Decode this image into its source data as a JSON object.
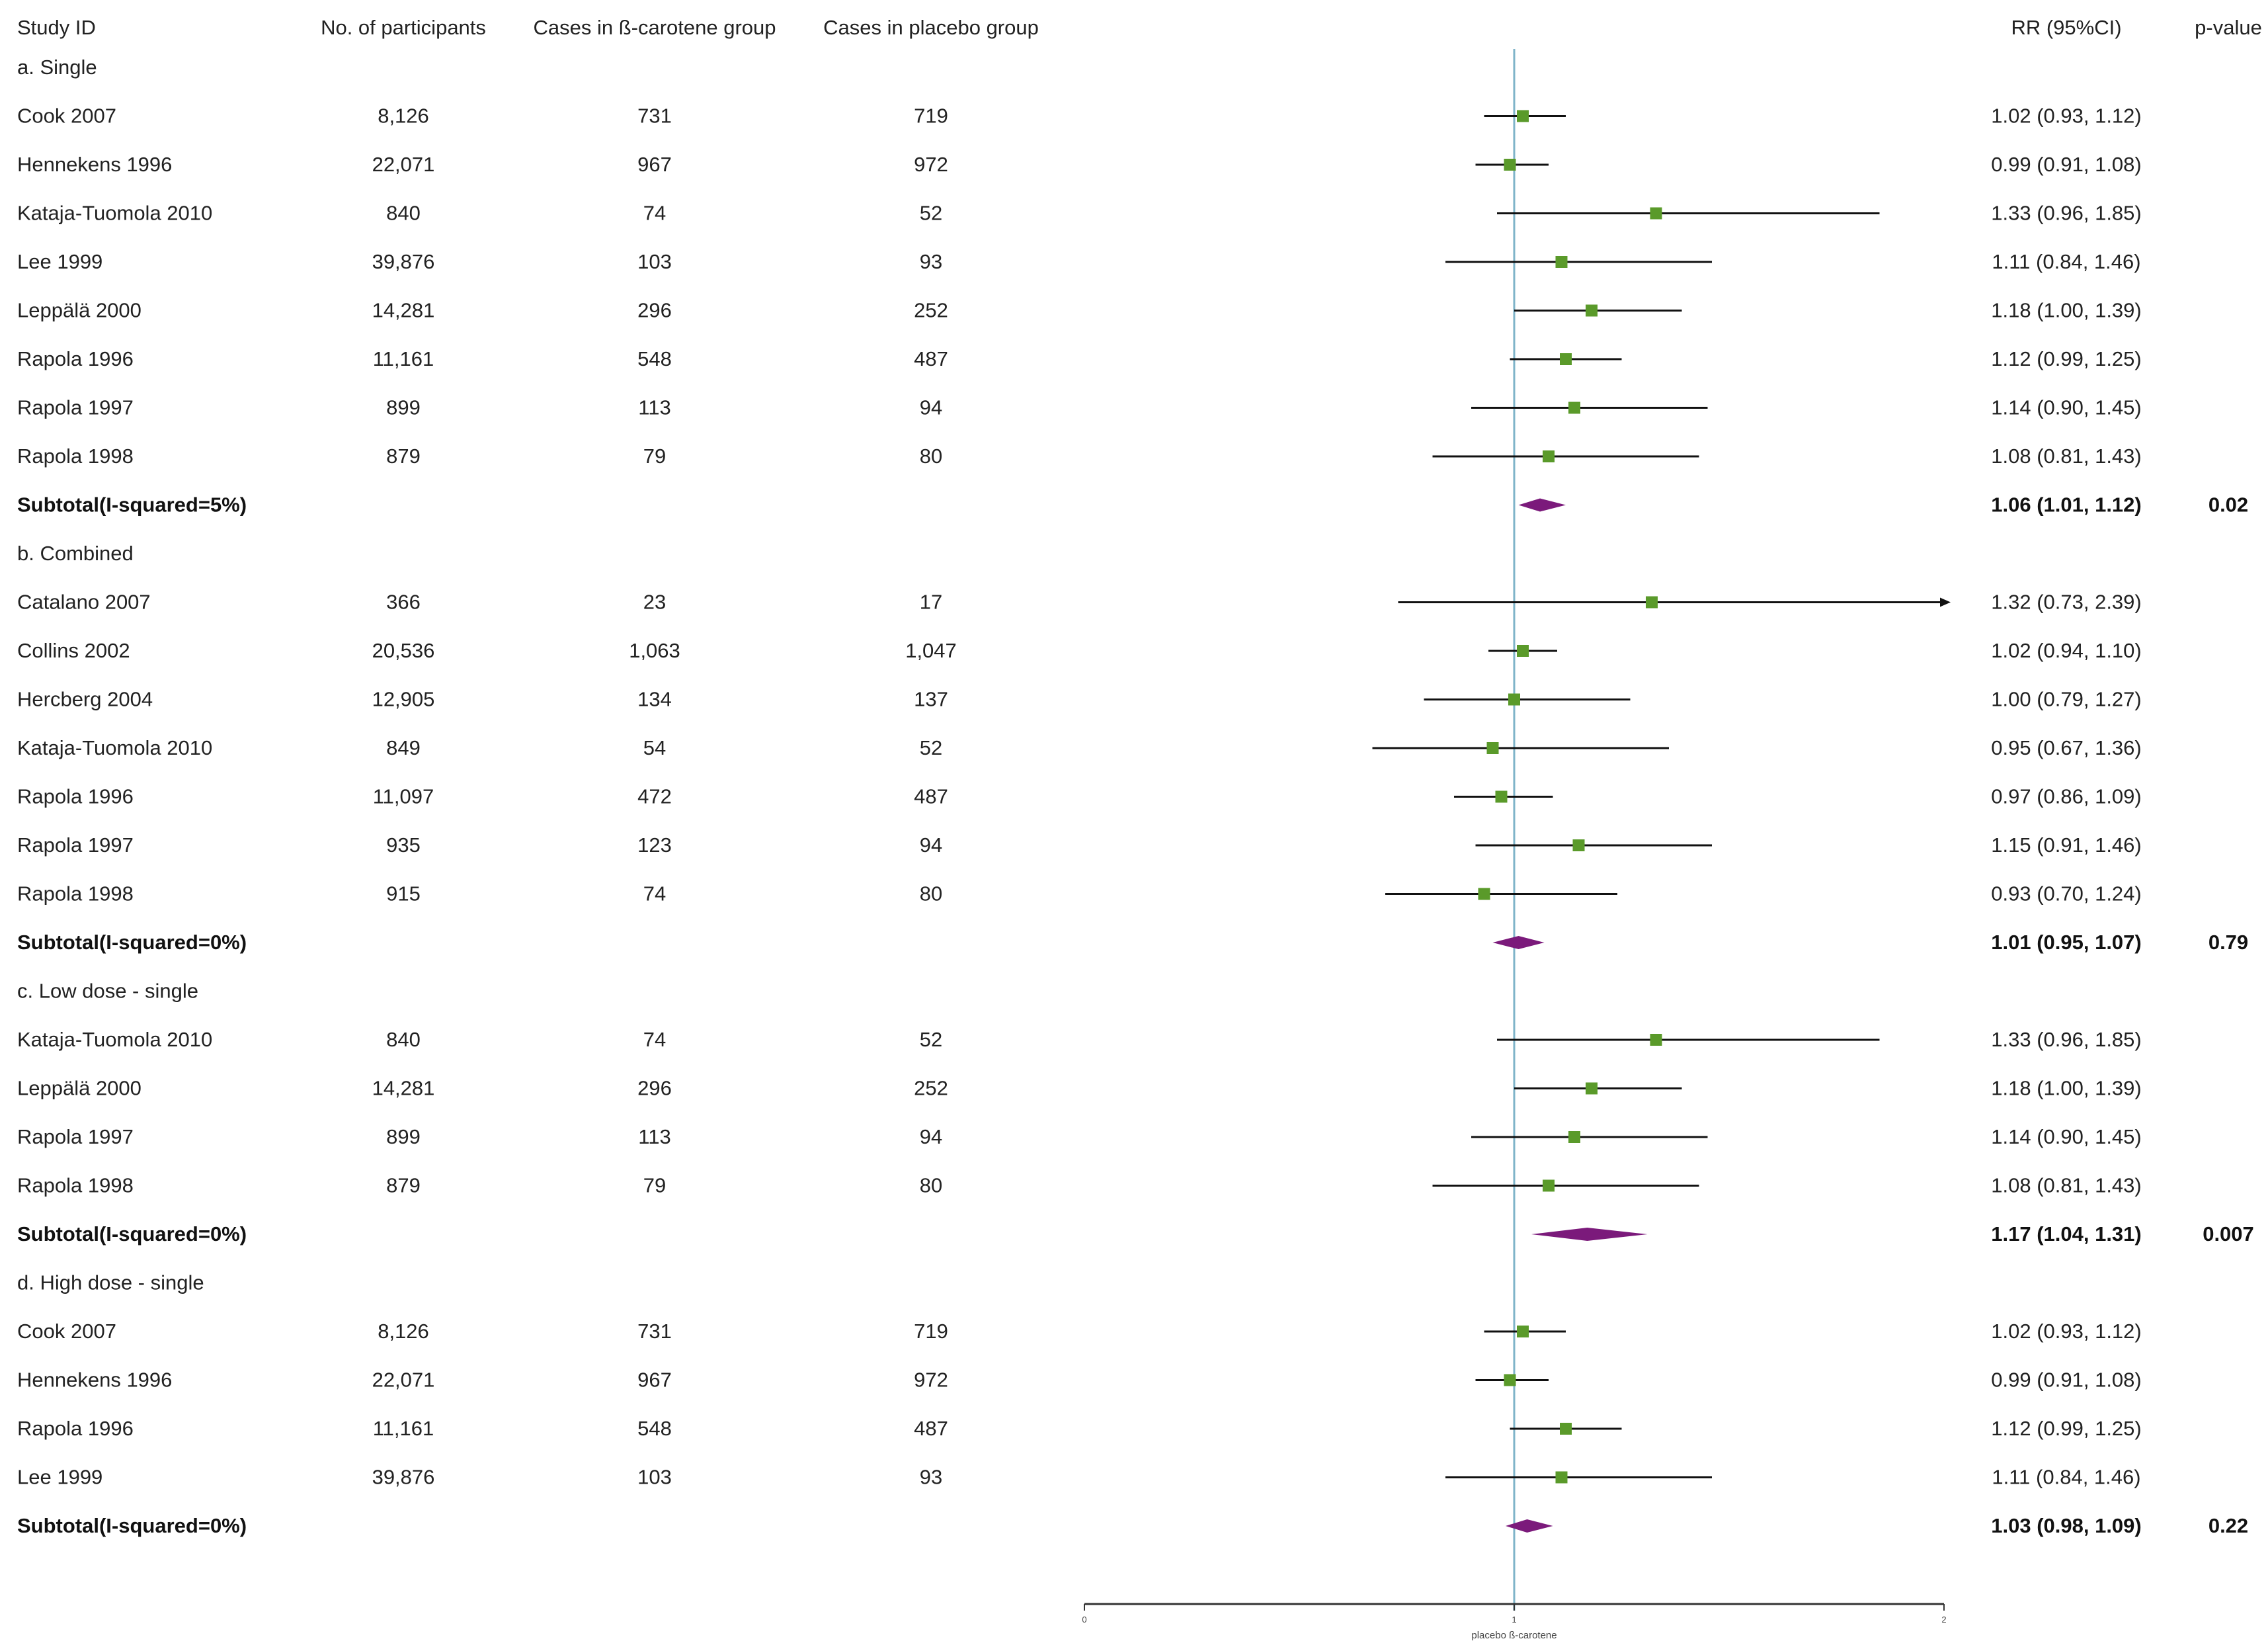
{
  "chart_data": {
    "type": "forest",
    "measure": "RR",
    "headers": {
      "study": "Study ID",
      "participants": "No. of participants",
      "cases_treatment": "Cases in ß-carotene group",
      "cases_placebo": "Cases in placebo group",
      "rr": "RR (95%CI)",
      "p": "p-value"
    },
    "x_axis": {
      "range": [
        0,
        2
      ],
      "reference_line": 1,
      "ticks": [
        "0",
        "1",
        "2"
      ],
      "tick_values": [
        0,
        1,
        2
      ],
      "label": "placebo ß-carotene"
    },
    "rows": [
      {
        "kind": "group",
        "label": "a. Single"
      },
      {
        "kind": "study",
        "label": "Cook 2007",
        "n": "8,126",
        "cases_tx": "731",
        "cases_pl": "719",
        "rr_text": "1.02 (0.93, 1.12)",
        "rr": 1.02,
        "lo": 0.93,
        "hi": 1.12
      },
      {
        "kind": "study",
        "label": "Hennekens 1996",
        "n": "22,071",
        "cases_tx": "967",
        "cases_pl": "972",
        "rr_text": "0.99 (0.91, 1.08)",
        "rr": 0.99,
        "lo": 0.91,
        "hi": 1.08
      },
      {
        "kind": "study",
        "label": "Kataja-Tuomola 2010",
        "n": "840",
        "cases_tx": "74",
        "cases_pl": "52",
        "rr_text": "1.33 (0.96, 1.85)",
        "rr": 1.33,
        "lo": 0.96,
        "hi": 1.85
      },
      {
        "kind": "study",
        "label": "Lee 1999",
        "n": "39,876",
        "cases_tx": "103",
        "cases_pl": "93",
        "rr_text": "1.11 (0.84, 1.46)",
        "rr": 1.11,
        "lo": 0.84,
        "hi": 1.46
      },
      {
        "kind": "study",
        "label": "Leppälä 2000",
        "n": "14,281",
        "cases_tx": "296",
        "cases_pl": "252",
        "rr_text": "1.18 (1.00, 1.39)",
        "rr": 1.18,
        "lo": 1.0,
        "hi": 1.39
      },
      {
        "kind": "study",
        "label": "Rapola 1996",
        "n": "11,161",
        "cases_tx": "548",
        "cases_pl": "487",
        "rr_text": "1.12 (0.99, 1.25)",
        "rr": 1.12,
        "lo": 0.99,
        "hi": 1.25
      },
      {
        "kind": "study",
        "label": "Rapola 1997",
        "n": "899",
        "cases_tx": "113",
        "cases_pl": "94",
        "rr_text": "1.14 (0.90, 1.45)",
        "rr": 1.14,
        "lo": 0.9,
        "hi": 1.45
      },
      {
        "kind": "study",
        "label": "Rapola 1998",
        "n": "879",
        "cases_tx": "79",
        "cases_pl": "80",
        "rr_text": "1.08 (0.81, 1.43)",
        "rr": 1.08,
        "lo": 0.81,
        "hi": 1.43
      },
      {
        "kind": "subtotal",
        "label": "Subtotal(I-squared=5%)",
        "rr_text": "1.06 (1.01, 1.12)",
        "p": "0.02",
        "rr": 1.06,
        "lo": 1.01,
        "hi": 1.12
      },
      {
        "kind": "group",
        "label": "b. Combined"
      },
      {
        "kind": "study",
        "label": "Catalano 2007",
        "n": "366",
        "cases_tx": "23",
        "cases_pl": "17",
        "rr_text": "1.32 (0.73, 2.39)",
        "rr": 1.32,
        "lo": 0.73,
        "hi": 2.39,
        "clipped_right": true
      },
      {
        "kind": "study",
        "label": "Collins 2002",
        "n": "20,536",
        "cases_tx": "1,063",
        "cases_pl": "1,047",
        "rr_text": "1.02 (0.94, 1.10)",
        "rr": 1.02,
        "lo": 0.94,
        "hi": 1.1
      },
      {
        "kind": "study",
        "label": "Hercberg 2004",
        "n": "12,905",
        "cases_tx": "134",
        "cases_pl": "137",
        "rr_text": "1.00 (0.79, 1.27)",
        "rr": 1.0,
        "lo": 0.79,
        "hi": 1.27
      },
      {
        "kind": "study",
        "label": "Kataja-Tuomola 2010",
        "n": "849",
        "cases_tx": "54",
        "cases_pl": "52",
        "rr_text": "0.95 (0.67, 1.36)",
        "rr": 0.95,
        "lo": 0.67,
        "hi": 1.36
      },
      {
        "kind": "study",
        "label": "Rapola 1996",
        "n": "11,097",
        "cases_tx": "472",
        "cases_pl": "487",
        "rr_text": "0.97 (0.86, 1.09)",
        "rr": 0.97,
        "lo": 0.86,
        "hi": 1.09
      },
      {
        "kind": "study",
        "label": "Rapola 1997",
        "n": "935",
        "cases_tx": "123",
        "cases_pl": "94",
        "rr_text": "1.15 (0.91, 1.46)",
        "rr": 1.15,
        "lo": 0.91,
        "hi": 1.46
      },
      {
        "kind": "study",
        "label": "Rapola 1998",
        "n": "915",
        "cases_tx": "74",
        "cases_pl": "80",
        "rr_text": "0.93 (0.70, 1.24)",
        "rr": 0.93,
        "lo": 0.7,
        "hi": 1.24
      },
      {
        "kind": "subtotal",
        "label": "Subtotal(I-squared=0%)",
        "rr_text": "1.01 (0.95, 1.07)",
        "p": "0.79",
        "rr": 1.01,
        "lo": 0.95,
        "hi": 1.07
      },
      {
        "kind": "group",
        "label": "c. Low dose - single"
      },
      {
        "kind": "study",
        "label": "Kataja-Tuomola 2010",
        "n": "840",
        "cases_tx": "74",
        "cases_pl": "52",
        "rr_text": "1.33 (0.96, 1.85)",
        "rr": 1.33,
        "lo": 0.96,
        "hi": 1.85
      },
      {
        "kind": "study",
        "label": "Leppälä 2000",
        "n": "14,281",
        "cases_tx": "296",
        "cases_pl": "252",
        "rr_text": "1.18 (1.00, 1.39)",
        "rr": 1.18,
        "lo": 1.0,
        "hi": 1.39
      },
      {
        "kind": "study",
        "label": "Rapola 1997",
        "n": "899",
        "cases_tx": "113",
        "cases_pl": "94",
        "rr_text": "1.14 (0.90, 1.45)",
        "rr": 1.14,
        "lo": 0.9,
        "hi": 1.45
      },
      {
        "kind": "study",
        "label": "Rapola 1998",
        "n": "879",
        "cases_tx": "79",
        "cases_pl": "80",
        "rr_text": "1.08 (0.81, 1.43)",
        "rr": 1.08,
        "lo": 0.81,
        "hi": 1.43
      },
      {
        "kind": "subtotal",
        "label": "Subtotal(I-squared=0%)",
        "rr_text": "1.17 (1.04, 1.31)",
        "p": "0.007",
        "rr": 1.17,
        "lo": 1.04,
        "hi": 1.31
      },
      {
        "kind": "group",
        "label": "d. High dose - single"
      },
      {
        "kind": "study",
        "label": "Cook 2007",
        "n": "8,126",
        "cases_tx": "731",
        "cases_pl": "719",
        "rr_text": "1.02 (0.93, 1.12)",
        "rr": 1.02,
        "lo": 0.93,
        "hi": 1.12
      },
      {
        "kind": "study",
        "label": "Hennekens 1996",
        "n": "22,071",
        "cases_tx": "967",
        "cases_pl": "972",
        "rr_text": "0.99 (0.91, 1.08)",
        "rr": 0.99,
        "lo": 0.91,
        "hi": 1.08
      },
      {
        "kind": "study",
        "label": "Rapola 1996",
        "n": "11,161",
        "cases_tx": "548",
        "cases_pl": "487",
        "rr_text": "1.12 (0.99, 1.25)",
        "rr": 1.12,
        "lo": 0.99,
        "hi": 1.25
      },
      {
        "kind": "study",
        "label": "Lee 1999",
        "n": "39,876",
        "cases_tx": "103",
        "cases_pl": "93",
        "rr_text": "1.11 (0.84, 1.46)",
        "rr": 1.11,
        "lo": 0.84,
        "hi": 1.46
      },
      {
        "kind": "subtotal",
        "label": "Subtotal(I-squared=0%)",
        "rr_text": "1.03 (0.98, 1.09)",
        "p": "0.22",
        "rr": 1.03,
        "lo": 0.98,
        "hi": 1.09
      }
    ]
  },
  "colors": {
    "text": "#222222",
    "point": "#5a9a2a",
    "diamond": "#7b1a7b",
    "ci_line": "#111111",
    "reference_line": "#7fb4c9",
    "axis": "#333333"
  }
}
